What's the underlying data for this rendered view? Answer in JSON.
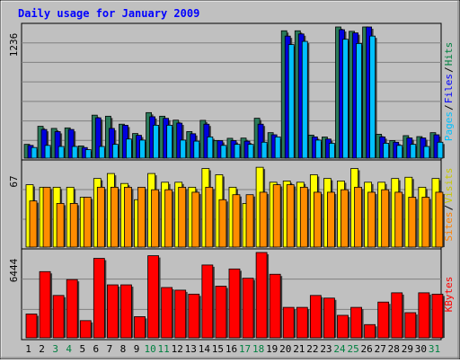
{
  "chart_data": {
    "type": "bar",
    "title": "Daily usage for January 2009",
    "categories": [
      "1",
      "2",
      "3",
      "4",
      "5",
      "6",
      "7",
      "8",
      "9",
      "10",
      "11",
      "12",
      "13",
      "14",
      "15",
      "16",
      "17",
      "18",
      "19",
      "20",
      "21",
      "22",
      "23",
      "24",
      "25",
      "26",
      "27",
      "28",
      "29",
      "30",
      "31"
    ],
    "weekend_days": [
      "3",
      "4",
      "10",
      "11",
      "17",
      "18",
      "24",
      "25",
      "31"
    ],
    "panels": [
      {
        "name": "hits-files-pages",
        "ymax": 1236,
        "ymax_label": "1236",
        "side_labels": [
          "Pages",
          "/",
          "Files",
          "/",
          "Hits"
        ],
        "series": [
          {
            "name": "Hits",
            "color": "#2a7a5a",
            "values": [
              130,
              300,
              280,
              285,
              115,
              405,
              395,
              320,
              232,
              429,
              395,
              358,
              250,
              356,
              166,
              187,
              189,
              376,
              240,
              1200,
              1200,
              217,
              199,
              1242,
              1195,
              1295,
              225,
              165,
              212,
              203,
              240
            ]
          },
          {
            "name": "Files",
            "color": "#0000e0",
            "values": [
              120,
              270,
              250,
              270,
              100,
              380,
              280,
              310,
              215,
              390,
              375,
              330,
              230,
              320,
              165,
              165,
              160,
              320,
              220,
              1150,
              1170,
              200,
              180,
              1210,
              1180,
              1270,
              200,
              150,
              190,
              190,
              220
            ]
          },
          {
            "name": "Pages",
            "color": "#00c0ff",
            "values": [
              100,
              120,
              110,
              110,
              80,
              110,
              130,
              180,
              170,
              310,
              310,
              170,
              160,
              200,
              120,
              130,
              130,
              150,
              200,
              1070,
              1100,
              170,
              140,
              1120,
              1080,
              1150,
              140,
              120,
              130,
              110,
              150
            ]
          }
        ]
      },
      {
        "name": "visits-sites",
        "ymax": 67,
        "ymax_label": "67",
        "side_labels": [
          "Sites",
          "/",
          "Visits"
        ],
        "series": [
          {
            "name": "Visits",
            "color": "#ffff00",
            "values": [
              50,
              48,
              48,
              48,
              40,
              55,
              59,
              51,
              38,
              59,
              52,
              52,
              48,
              63,
              58,
              48,
              35,
              64,
              52,
              53,
              52,
              58,
              55,
              53,
              63,
              52,
              52,
              55,
              56,
              48,
              55
            ]
          },
          {
            "name": "Sites",
            "color": "#ff8c00",
            "values": [
              37,
              48,
              35,
              35,
              40,
              48,
              48,
              48,
              48,
              46,
              46,
              48,
              44,
              48,
              38,
              42,
              42,
              44,
              50,
              50,
              48,
              44,
              44,
              46,
              48,
              44,
              46,
              44,
              40,
              40,
              44
            ]
          }
        ]
      },
      {
        "name": "kbytes",
        "ymax": 6444,
        "ymax_label": "6444",
        "side_labels": [
          "KBytes"
        ],
        "series": [
          {
            "name": "KBytes",
            "color": "#ff0000",
            "values": [
              1800,
              5000,
              3200,
              4400,
              1300,
              6000,
              4000,
              4000,
              1600,
              6200,
              3800,
              3600,
              3300,
              5500,
              3900,
              5200,
              4500,
              6700,
              4800,
              2300,
              2300,
              3200,
              3000,
              1700,
              2300,
              1000,
              2700,
              3400,
              1900,
              3400,
              3300
            ]
          }
        ]
      }
    ],
    "colors": {
      "background": "#c0c0c0",
      "title": "#0000ff",
      "grid": "#808080",
      "weekend_label": "#008040",
      "weekday_label": "#000000",
      "side_sites": "#ff8000",
      "side_visits": "#c8c800",
      "side_pages": "#00c0ff",
      "side_files": "#0000ff",
      "side_hits": "#008040",
      "side_kbytes": "#ff0000",
      "side_slash": "#000000"
    }
  }
}
